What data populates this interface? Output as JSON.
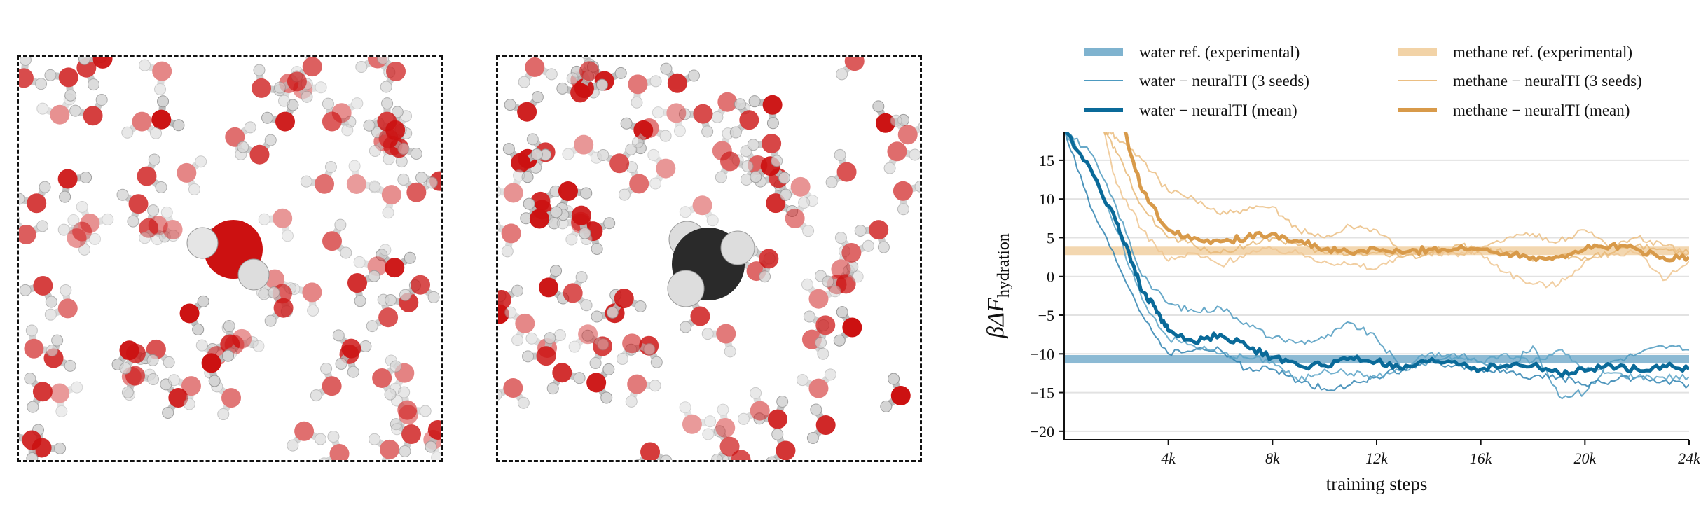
{
  "panels": [
    {
      "solute": "water",
      "solute_color": "#cc1111"
    },
    {
      "solute": "methane",
      "solute_color": "#2a2a2a"
    }
  ],
  "chart_data": {
    "type": "line",
    "xlabel": "training steps",
    "ylabel": "βΔF",
    "ylabel_sub": "hydration",
    "xlim": [
      0,
      24000
    ],
    "ylim": [
      -21.1,
      18.7
    ],
    "xticks": [
      4000,
      8000,
      12000,
      16000,
      20000,
      24000
    ],
    "xtick_labels": [
      "4k",
      "8k",
      "12k",
      "16k",
      "20k",
      "24k"
    ],
    "yticks": [
      -20,
      -15,
      -10,
      -5,
      0,
      5,
      10,
      15
    ],
    "ytick_labels": [
      "−20",
      "−15",
      "−10",
      "−5",
      "0",
      "5",
      "10",
      "15"
    ],
    "grid": "horizontal",
    "legend_placement": "top",
    "references": [
      {
        "name": "water ref. (experimental)",
        "value": -10.7,
        "color": "#7fb3cf"
      },
      {
        "name": "methane ref. (experimental)",
        "value": 3.3,
        "color": "#f2d3a7"
      }
    ],
    "series": [
      {
        "name": "water − neuralTI (3 seeds)",
        "style": "seed",
        "color": "#4d9ac0",
        "x": [
          0,
          1000,
          2000,
          3000,
          4000,
          5000,
          6000,
          7000,
          8000,
          9000,
          10000,
          11000,
          12000,
          13000,
          14000,
          15000,
          16000,
          17000,
          18000,
          19000,
          20000,
          21000,
          22000,
          23000,
          24000
        ],
        "y": [
          19,
          16,
          9,
          0,
          -3.5,
          -4.5,
          -4,
          -6,
          -8,
          -8.5,
          -8,
          -6,
          -8,
          -12,
          -11,
          -10,
          -11,
          -12,
          -9,
          -15.5,
          -15,
          -11,
          -10,
          -9,
          -9.5
        ]
      },
      {
        "name": "",
        "style": "seed",
        "color": "#2f83b0",
        "x": [
          0,
          1000,
          2000,
          3000,
          4000,
          5000,
          6000,
          7000,
          8000,
          9000,
          10000,
          11000,
          12000,
          13000,
          14000,
          15000,
          16000,
          17000,
          18000,
          19000,
          20000,
          21000,
          22000,
          23000,
          24000
        ],
        "y": [
          19,
          9,
          2,
          -5,
          -10,
          -9.5,
          -9.5,
          -12,
          -12,
          -13.5,
          -14.5,
          -14,
          -13,
          -12,
          -11,
          -11.5,
          -12,
          -12.5,
          -13,
          -13,
          -14,
          -13.5,
          -13,
          -13.5,
          -14
        ]
      },
      {
        "name": "",
        "style": "seed",
        "color": "#5aa3c7",
        "x": [
          0,
          1000,
          2000,
          3000,
          4000,
          5000,
          6000,
          7000,
          8000,
          9000,
          10000,
          11000,
          12000,
          13000,
          14000,
          15000,
          16000,
          17000,
          18000,
          19000,
          20000,
          21000,
          22000,
          23000,
          24000
        ],
        "y": [
          19,
          14,
          6,
          -3,
          -8,
          -9,
          -10,
          -10.5,
          -11,
          -13.5,
          -12,
          -12.5,
          -13,
          -12,
          -10,
          -10.5,
          -11,
          -10,
          -11,
          -9.5,
          -12,
          -12.5,
          -13,
          -13,
          -13
        ]
      },
      {
        "name": "water − neuralTI (mean)",
        "style": "mean",
        "color": "#0a6a99",
        "x": [
          0,
          1000,
          2000,
          2500,
          3000,
          3500,
          4000,
          5000,
          6000,
          7000,
          8000,
          9000,
          10000,
          11000,
          12000,
          13000,
          14000,
          15000,
          16000,
          17000,
          18000,
          19000,
          20000,
          21000,
          22000,
          23000,
          24000
        ],
        "y": [
          19,
          14,
          7,
          3,
          -2,
          -4,
          -7,
          -8.5,
          -7.5,
          -9,
          -10.5,
          -11.5,
          -11.5,
          -10.5,
          -11,
          -12,
          -11,
          -11,
          -12,
          -11.5,
          -11.5,
          -12.5,
          -12.2,
          -11.5,
          -12,
          -11.5,
          -12
        ]
      },
      {
        "name": "methane − neuralTI (3 seeds)",
        "style": "seed",
        "color": "#ebbe82",
        "x": [
          1500,
          2000,
          3000,
          4000,
          5000,
          6000,
          7000,
          8000,
          9000,
          10000,
          11000,
          12000,
          13000,
          14000,
          15000,
          16000,
          17000,
          18000,
          19000,
          20000,
          21000,
          22000,
          23000,
          24000
        ],
        "y": [
          19,
          18,
          15,
          11,
          10,
          8,
          8.5,
          9,
          6,
          5,
          6.5,
          6,
          3,
          3,
          3,
          3.5,
          5,
          5.5,
          4.5,
          6,
          4,
          5,
          4,
          3
        ]
      },
      {
        "name": "",
        "style": "seed",
        "color": "#eec590",
        "x": [
          1500,
          2000,
          3000,
          4000,
          5000,
          6000,
          7000,
          8000,
          9000,
          10000,
          11000,
          12000,
          13000,
          14000,
          15000,
          16000,
          17000,
          18000,
          19000,
          20000,
          21000,
          22000,
          23000,
          24000
        ],
        "y": [
          19,
          12,
          6,
          2,
          3,
          1.5,
          3,
          3.5,
          3,
          2,
          1.5,
          1,
          3,
          3,
          3,
          3,
          0.5,
          -1,
          -1,
          2,
          3,
          3,
          -0.5,
          2
        ]
      },
      {
        "name": "",
        "style": "seed",
        "color": "#e8b877",
        "x": [
          1500,
          2000,
          3000,
          4000,
          5000,
          6000,
          7000,
          8000,
          9000,
          10000,
          11000,
          12000,
          13000,
          14000,
          15000,
          16000,
          17000,
          18000,
          19000,
          20000,
          21000,
          22000,
          23000,
          24000
        ],
        "y": [
          19,
          16,
          9,
          5,
          4,
          3,
          4,
          5,
          4,
          3,
          3,
          3,
          2.5,
          3,
          4,
          3.5,
          3,
          2,
          2.5,
          2.5,
          3,
          4,
          3.5,
          3
        ]
      },
      {
        "name": "methane − neuralTI (mean)",
        "style": "mean",
        "color": "#d89a4a",
        "x": [
          2300,
          3000,
          4000,
          5000,
          6000,
          7000,
          8000,
          9000,
          10000,
          11000,
          12000,
          13000,
          14000,
          15000,
          16000,
          17000,
          18000,
          19000,
          20000,
          21000,
          22000,
          23000,
          24000
        ],
        "y": [
          19,
          11,
          6,
          5,
          4.5,
          5,
          5.5,
          4.5,
          3.5,
          3,
          3.5,
          3,
          3.5,
          3.5,
          3.5,
          3,
          2.5,
          2.5,
          3.5,
          4,
          3.5,
          2.5,
          2.5
        ]
      }
    ]
  }
}
